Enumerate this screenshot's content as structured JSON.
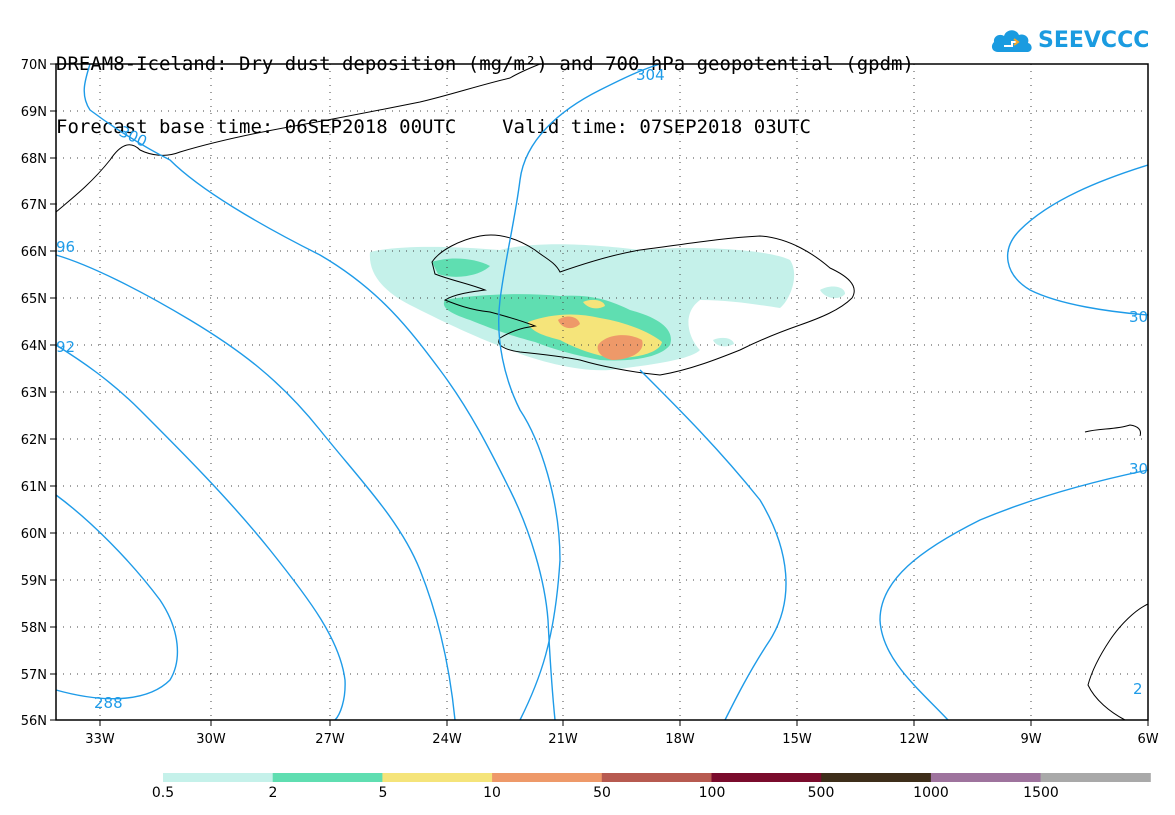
{
  "title": {
    "line1": "DREAM8-Iceland: Dry dust deposition (mg/m²) and 700 hPa geopotential (gpdm)",
    "line2": "Forecast base time: 06SEP2018 00UTC    Valid time: 07SEP2018 03UTC"
  },
  "logo": {
    "text": "SEEVCCC",
    "icon": "cloud-logo-icon",
    "color": "#1a9be0"
  },
  "axes": {
    "lat_labels": [
      "70N",
      "69N",
      "68N",
      "67N",
      "66N",
      "65N",
      "64N",
      "63N",
      "62N",
      "61N",
      "60N",
      "59N",
      "58N",
      "57N",
      "56N"
    ],
    "lon_labels": [
      "33W",
      "30W",
      "27W",
      "24W",
      "21W",
      "18W",
      "15W",
      "12W",
      "9W",
      "6W"
    ],
    "lat_range": [
      56,
      70
    ],
    "lon_range": [
      -34,
      -6
    ],
    "grid": "dotted"
  },
  "contours": {
    "color": "#1e9be8",
    "labels": [
      "304",
      "300",
      "96",
      "92",
      "288",
      "30",
      "30",
      "2"
    ]
  },
  "colorbar": {
    "colors": [
      "#c5f1ea",
      "#5fdeb1",
      "#f5e47a",
      "#ee9969",
      "#b75a50",
      "#7a0b2c",
      "#3e2e1a",
      "#9e739d",
      "#a9a9a9"
    ],
    "labels": [
      "0.5",
      "2",
      "5",
      "10",
      "50",
      "100",
      "500",
      "1000",
      "1500"
    ]
  },
  "dust_colors": {
    "light": "#c5f1ea",
    "green": "#5fdeb1",
    "yellow": "#f5e47a",
    "orange": "#ee9969"
  }
}
